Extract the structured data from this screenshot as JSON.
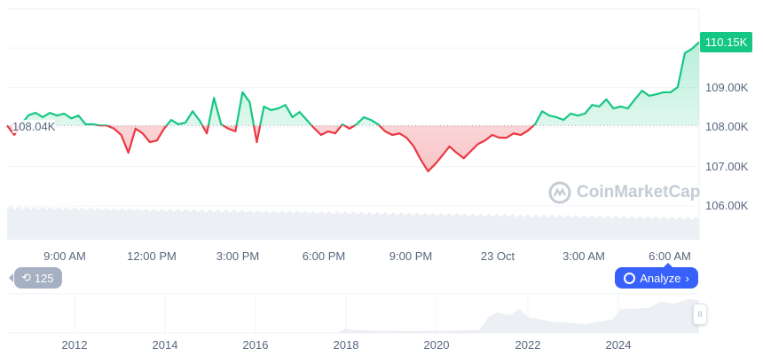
{
  "chart_data": {
    "type": "area",
    "x_start": "22 Oct 07:00",
    "interval_minutes": 15,
    "values": [
      108.04,
      107.8,
      108.07,
      108.3,
      108.36,
      108.25,
      108.36,
      108.29,
      108.34,
      108.22,
      108.29,
      108.07,
      108.07,
      108.04,
      108.04,
      107.96,
      107.8,
      107.35,
      107.96,
      107.84,
      107.62,
      107.66,
      107.96,
      108.18,
      108.07,
      108.11,
      108.4,
      108.16,
      107.84,
      108.74,
      108.07,
      107.96,
      107.89,
      108.88,
      108.63,
      107.62,
      108.52,
      108.43,
      108.47,
      108.56,
      108.25,
      108.38,
      108.18,
      107.98,
      107.8,
      107.89,
      107.84,
      108.07,
      107.96,
      108.07,
      108.25,
      108.18,
      108.07,
      107.89,
      107.8,
      107.84,
      107.73,
      107.51,
      107.17,
      106.88,
      107.06,
      107.28,
      107.51,
      107.35,
      107.21,
      107.39,
      107.57,
      107.66,
      107.8,
      107.73,
      107.73,
      107.84,
      107.8,
      107.91,
      108.07,
      108.4,
      108.29,
      108.25,
      108.18,
      108.34,
      108.29,
      108.34,
      108.56,
      108.52,
      108.7,
      108.47,
      108.52,
      108.47,
      108.7,
      108.92,
      108.79,
      108.83,
      108.88,
      108.88,
      109.01,
      109.87,
      109.98,
      110.15
    ],
    "baseline": 108.04,
    "baseline_label": "108.04K",
    "current_label": "110.15K",
    "ylim": [
      105.15,
      110.99
    ],
    "y_ticks": [
      {
        "v": 109,
        "label": "109.00K"
      },
      {
        "v": 108,
        "label": "108.00K"
      },
      {
        "v": 107,
        "label": "107.00K"
      },
      {
        "v": 106,
        "label": "106.00K"
      }
    ],
    "x_ticks": [
      "9:00 AM",
      "12:00 PM",
      "3:00 PM",
      "6:00 PM",
      "9:00 PM",
      "23 Oct",
      "3:00 AM",
      "6:00 AM"
    ],
    "navigator_years": [
      "2012",
      "2014",
      "2016",
      "2018",
      "2020",
      "2022",
      "2024"
    ],
    "grid": true,
    "colors": {
      "up": "#16c784",
      "down": "#ea3943",
      "accent": "#3861fb"
    }
  },
  "watermark": "CoinMarketCap",
  "history_pill": {
    "icon": "history-icon",
    "label": "125"
  },
  "analyze": {
    "icon": "cmc-ai-icon",
    "label": "Analyze",
    "chevron": "›"
  }
}
